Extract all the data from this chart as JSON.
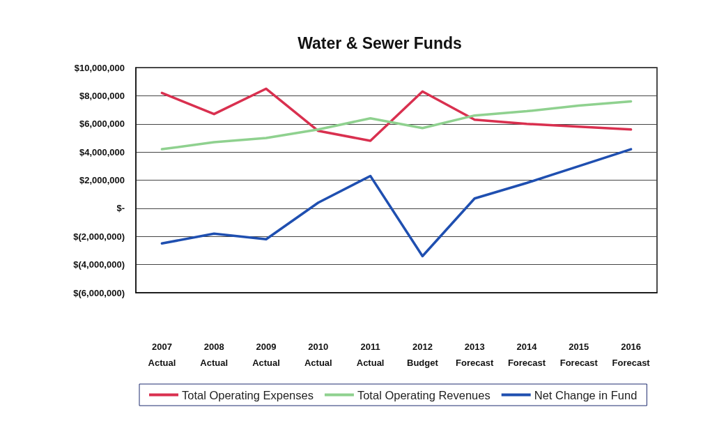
{
  "chart_data": {
    "type": "line",
    "title": "Water & Sewer Funds",
    "categories": [
      "2007\nActual",
      "2008\nActual",
      "2009\nActual",
      "2010\nActual",
      "2011\nActual",
      "2012\nBudget",
      "2013\nForecast",
      "2014\nForecast",
      "2015\nForecast",
      "2016\nForecast"
    ],
    "series": [
      {
        "name": "Total Operating Expenses",
        "color": "#d9304f",
        "values": [
          8200000,
          6700000,
          8500000,
          5500000,
          4800000,
          8300000,
          6300000,
          6000000,
          5800000,
          5600000
        ]
      },
      {
        "name": "Total Operating Revenues",
        "color": "#8fd18f",
        "values": [
          4200000,
          4700000,
          5000000,
          5600000,
          6400000,
          5700000,
          6600000,
          6900000,
          7300000,
          7600000
        ]
      },
      {
        "name": "Net Change in Fund",
        "color": "#1f4fb0",
        "values": [
          -2500000,
          -1800000,
          -2200000,
          400000,
          2300000,
          -3400000,
          700000,
          1800000,
          3000000,
          4200000
        ]
      }
    ],
    "ylim": [
      -6000000,
      10000000
    ],
    "yticks": [
      {
        "value": -6000000,
        "label": "$(6,000,000)"
      },
      {
        "value": -4000000,
        "label": "$(4,000,000)"
      },
      {
        "value": -2000000,
        "label": "$(2,000,000)"
      },
      {
        "value": 0,
        "label": "$-"
      },
      {
        "value": 2000000,
        "label": "$2,000,000"
      },
      {
        "value": 4000000,
        "label": "$4,000,000"
      },
      {
        "value": 6000000,
        "label": "$6,000,000"
      },
      {
        "value": 8000000,
        "label": "$8,000,000"
      },
      {
        "value": 10000000,
        "label": "$10,000,000"
      }
    ],
    "grid": "y",
    "legend": "bottom",
    "marker": "none",
    "line_style": "solid"
  }
}
